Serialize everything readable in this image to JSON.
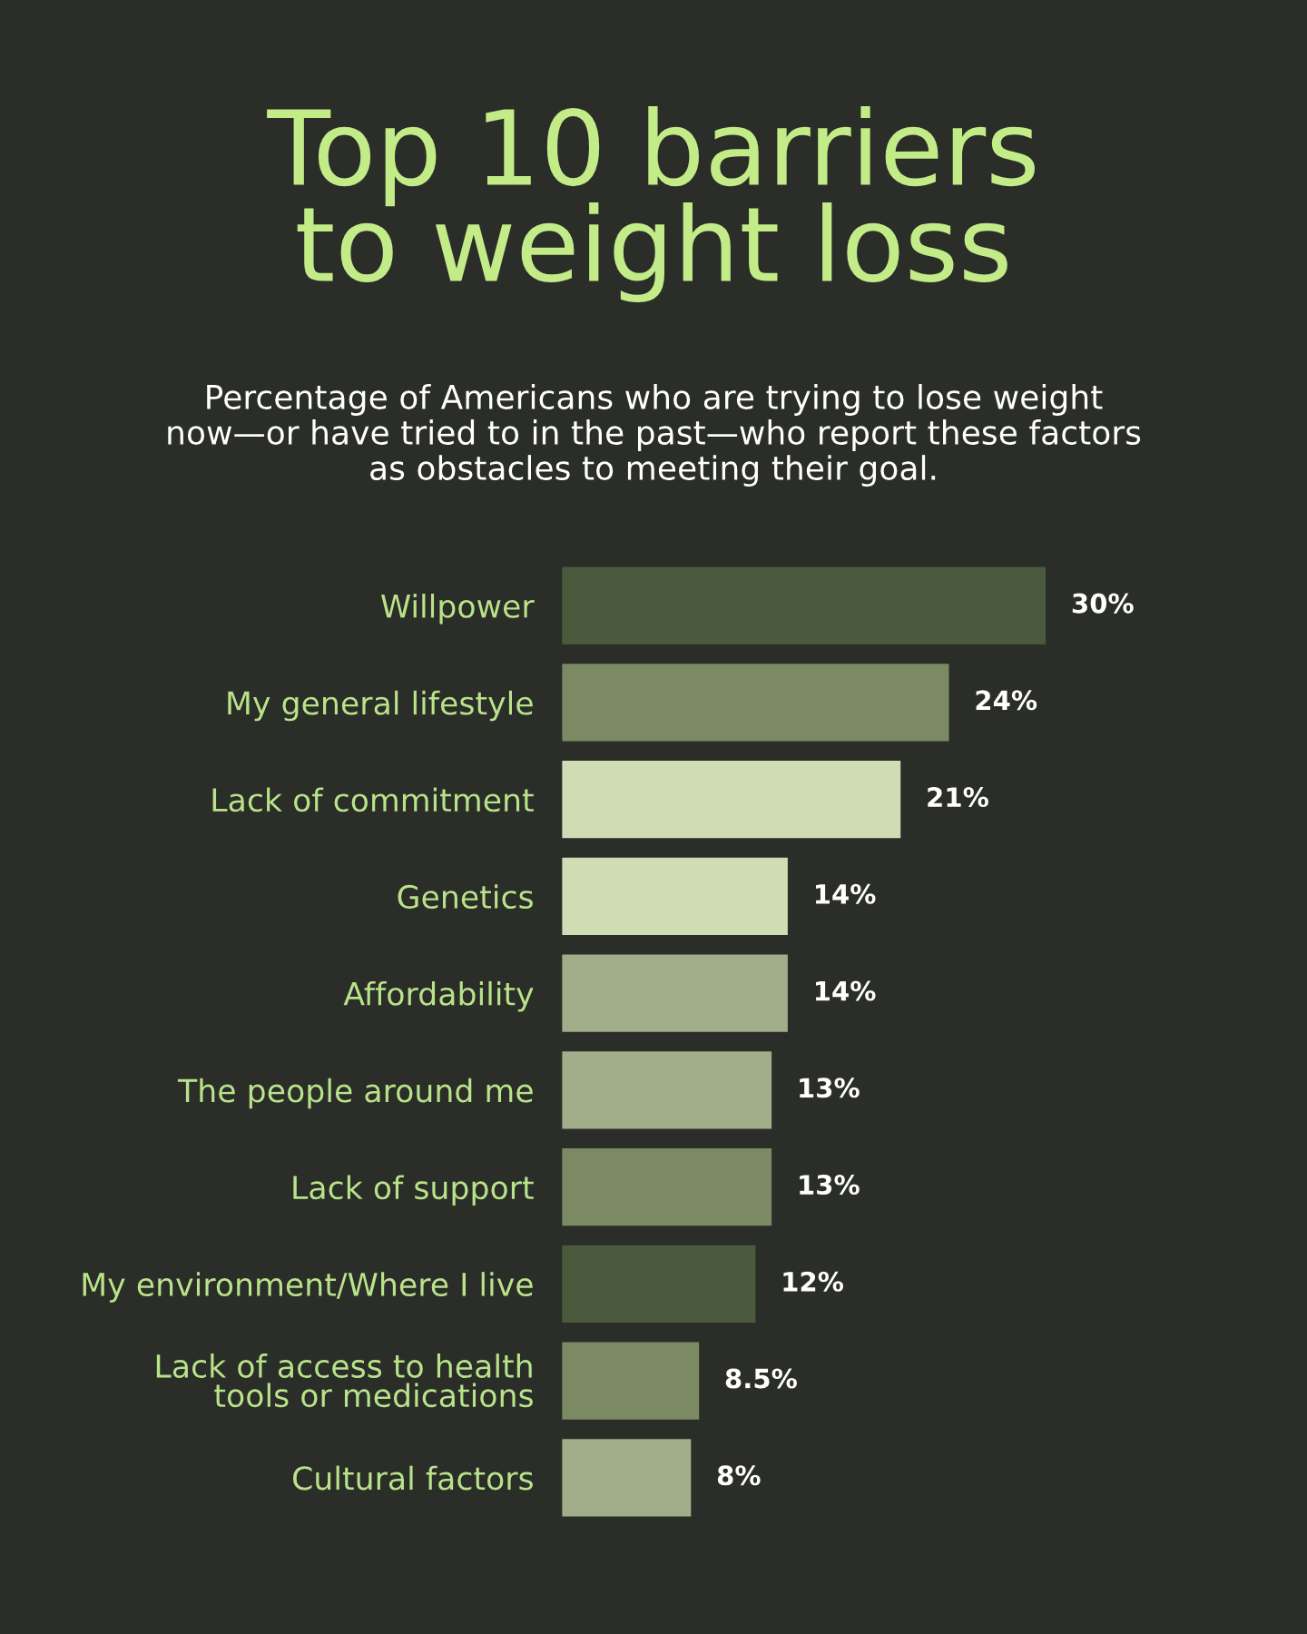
{
  "chart_data": {
    "type": "bar",
    "orientation": "horizontal",
    "title": "Top 10 barriers\nto weight loss",
    "subtitle": "Percentage of Americans who are trying to lose weight\nnow—or have tried to in the past—who report these factors\nas obstacles to meeting their goal.",
    "categories": [
      "Willpower",
      "My general lifestyle",
      "Lack of commitment",
      "Genetics",
      "Affordability",
      "The people around me",
      "Lack of support",
      "My environment/Where I live",
      "Lack of access to health\ntools or medications",
      "Cultural factors"
    ],
    "values": [
      30,
      24,
      21,
      14,
      14,
      13,
      13,
      12,
      8.5,
      8
    ],
    "colors": [
      "#4b5a3c",
      "#7b8a63",
      "#cfdcb4",
      "#cfdcb4",
      "#a1ae89",
      "#a1ae89",
      "#7b8a63",
      "#4b5a3c",
      "#7b8a63",
      "#a1ae89"
    ],
    "value_labels": [
      "30%",
      "24%",
      "21%",
      "14%",
      "14%",
      "13%",
      "13%",
      "12%",
      "8.5%",
      "8%"
    ],
    "grid": false,
    "legend": false
  }
}
